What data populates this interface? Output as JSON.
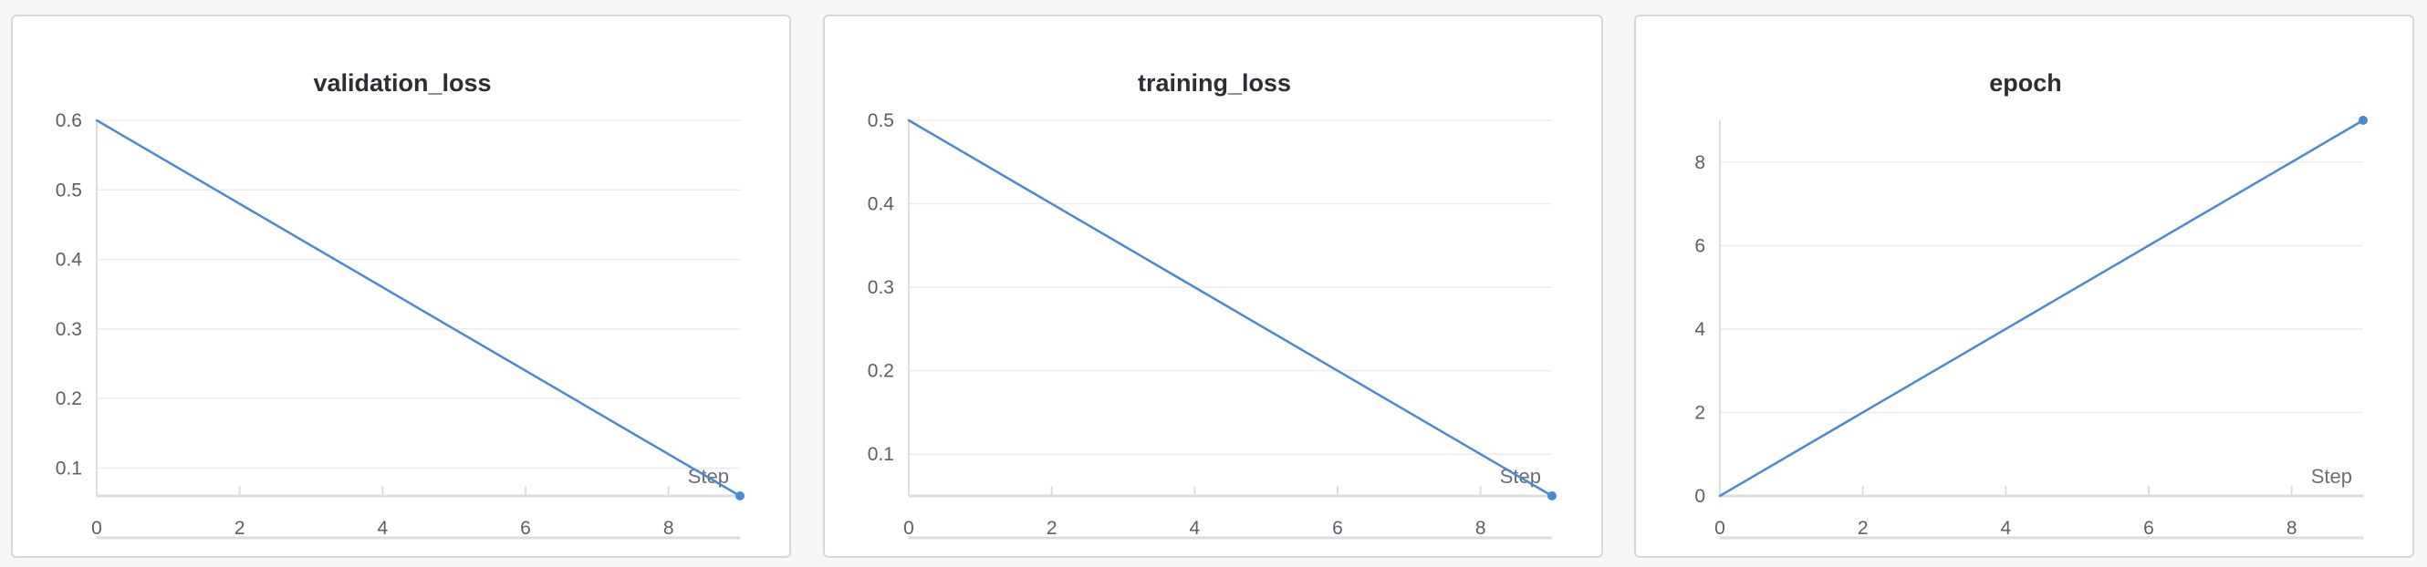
{
  "chart_data": [
    {
      "type": "line",
      "title": "validation_loss",
      "xlabel": "Step",
      "ylabel": "",
      "x": [
        0,
        9
      ],
      "series": [
        {
          "values": [
            0.6,
            0.06
          ]
        }
      ],
      "xlim": [
        0,
        9
      ],
      "ylim": [
        0.06,
        0.6
      ],
      "xticks": [
        0,
        2,
        4,
        6,
        8
      ],
      "yticks": [
        0.1,
        0.2,
        0.3,
        0.4,
        0.5,
        0.6
      ],
      "ytick_labels": [
        "0.1",
        "0.2",
        "0.3",
        "0.4",
        "0.5",
        "0.6"
      ],
      "grid": true,
      "line_color": "#4a8ad4"
    },
    {
      "type": "line",
      "title": "training_loss",
      "xlabel": "Step",
      "ylabel": "",
      "x": [
        0,
        9
      ],
      "series": [
        {
          "values": [
            0.5,
            0.05
          ]
        }
      ],
      "xlim": [
        0,
        9
      ],
      "ylim": [
        0.05,
        0.5
      ],
      "xticks": [
        0,
        2,
        4,
        6,
        8
      ],
      "yticks": [
        0.1,
        0.2,
        0.3,
        0.4,
        0.5
      ],
      "ytick_labels": [
        "0.1",
        "0.2",
        "0.3",
        "0.4",
        "0.5"
      ],
      "grid": true,
      "line_color": "#4a8ad4"
    },
    {
      "type": "line",
      "title": "epoch",
      "xlabel": "Step",
      "ylabel": "",
      "x": [
        0,
        9
      ],
      "series": [
        {
          "values": [
            0,
            9
          ]
        }
      ],
      "xlim": [
        0,
        9
      ],
      "ylim": [
        0,
        9
      ],
      "xticks": [
        0,
        2,
        4,
        6,
        8
      ],
      "yticks": [
        0,
        2,
        4,
        6,
        8
      ],
      "ytick_labels": [
        "0",
        "2",
        "4",
        "6",
        "8"
      ],
      "grid": true,
      "line_color": "#4a8ad4"
    }
  ]
}
